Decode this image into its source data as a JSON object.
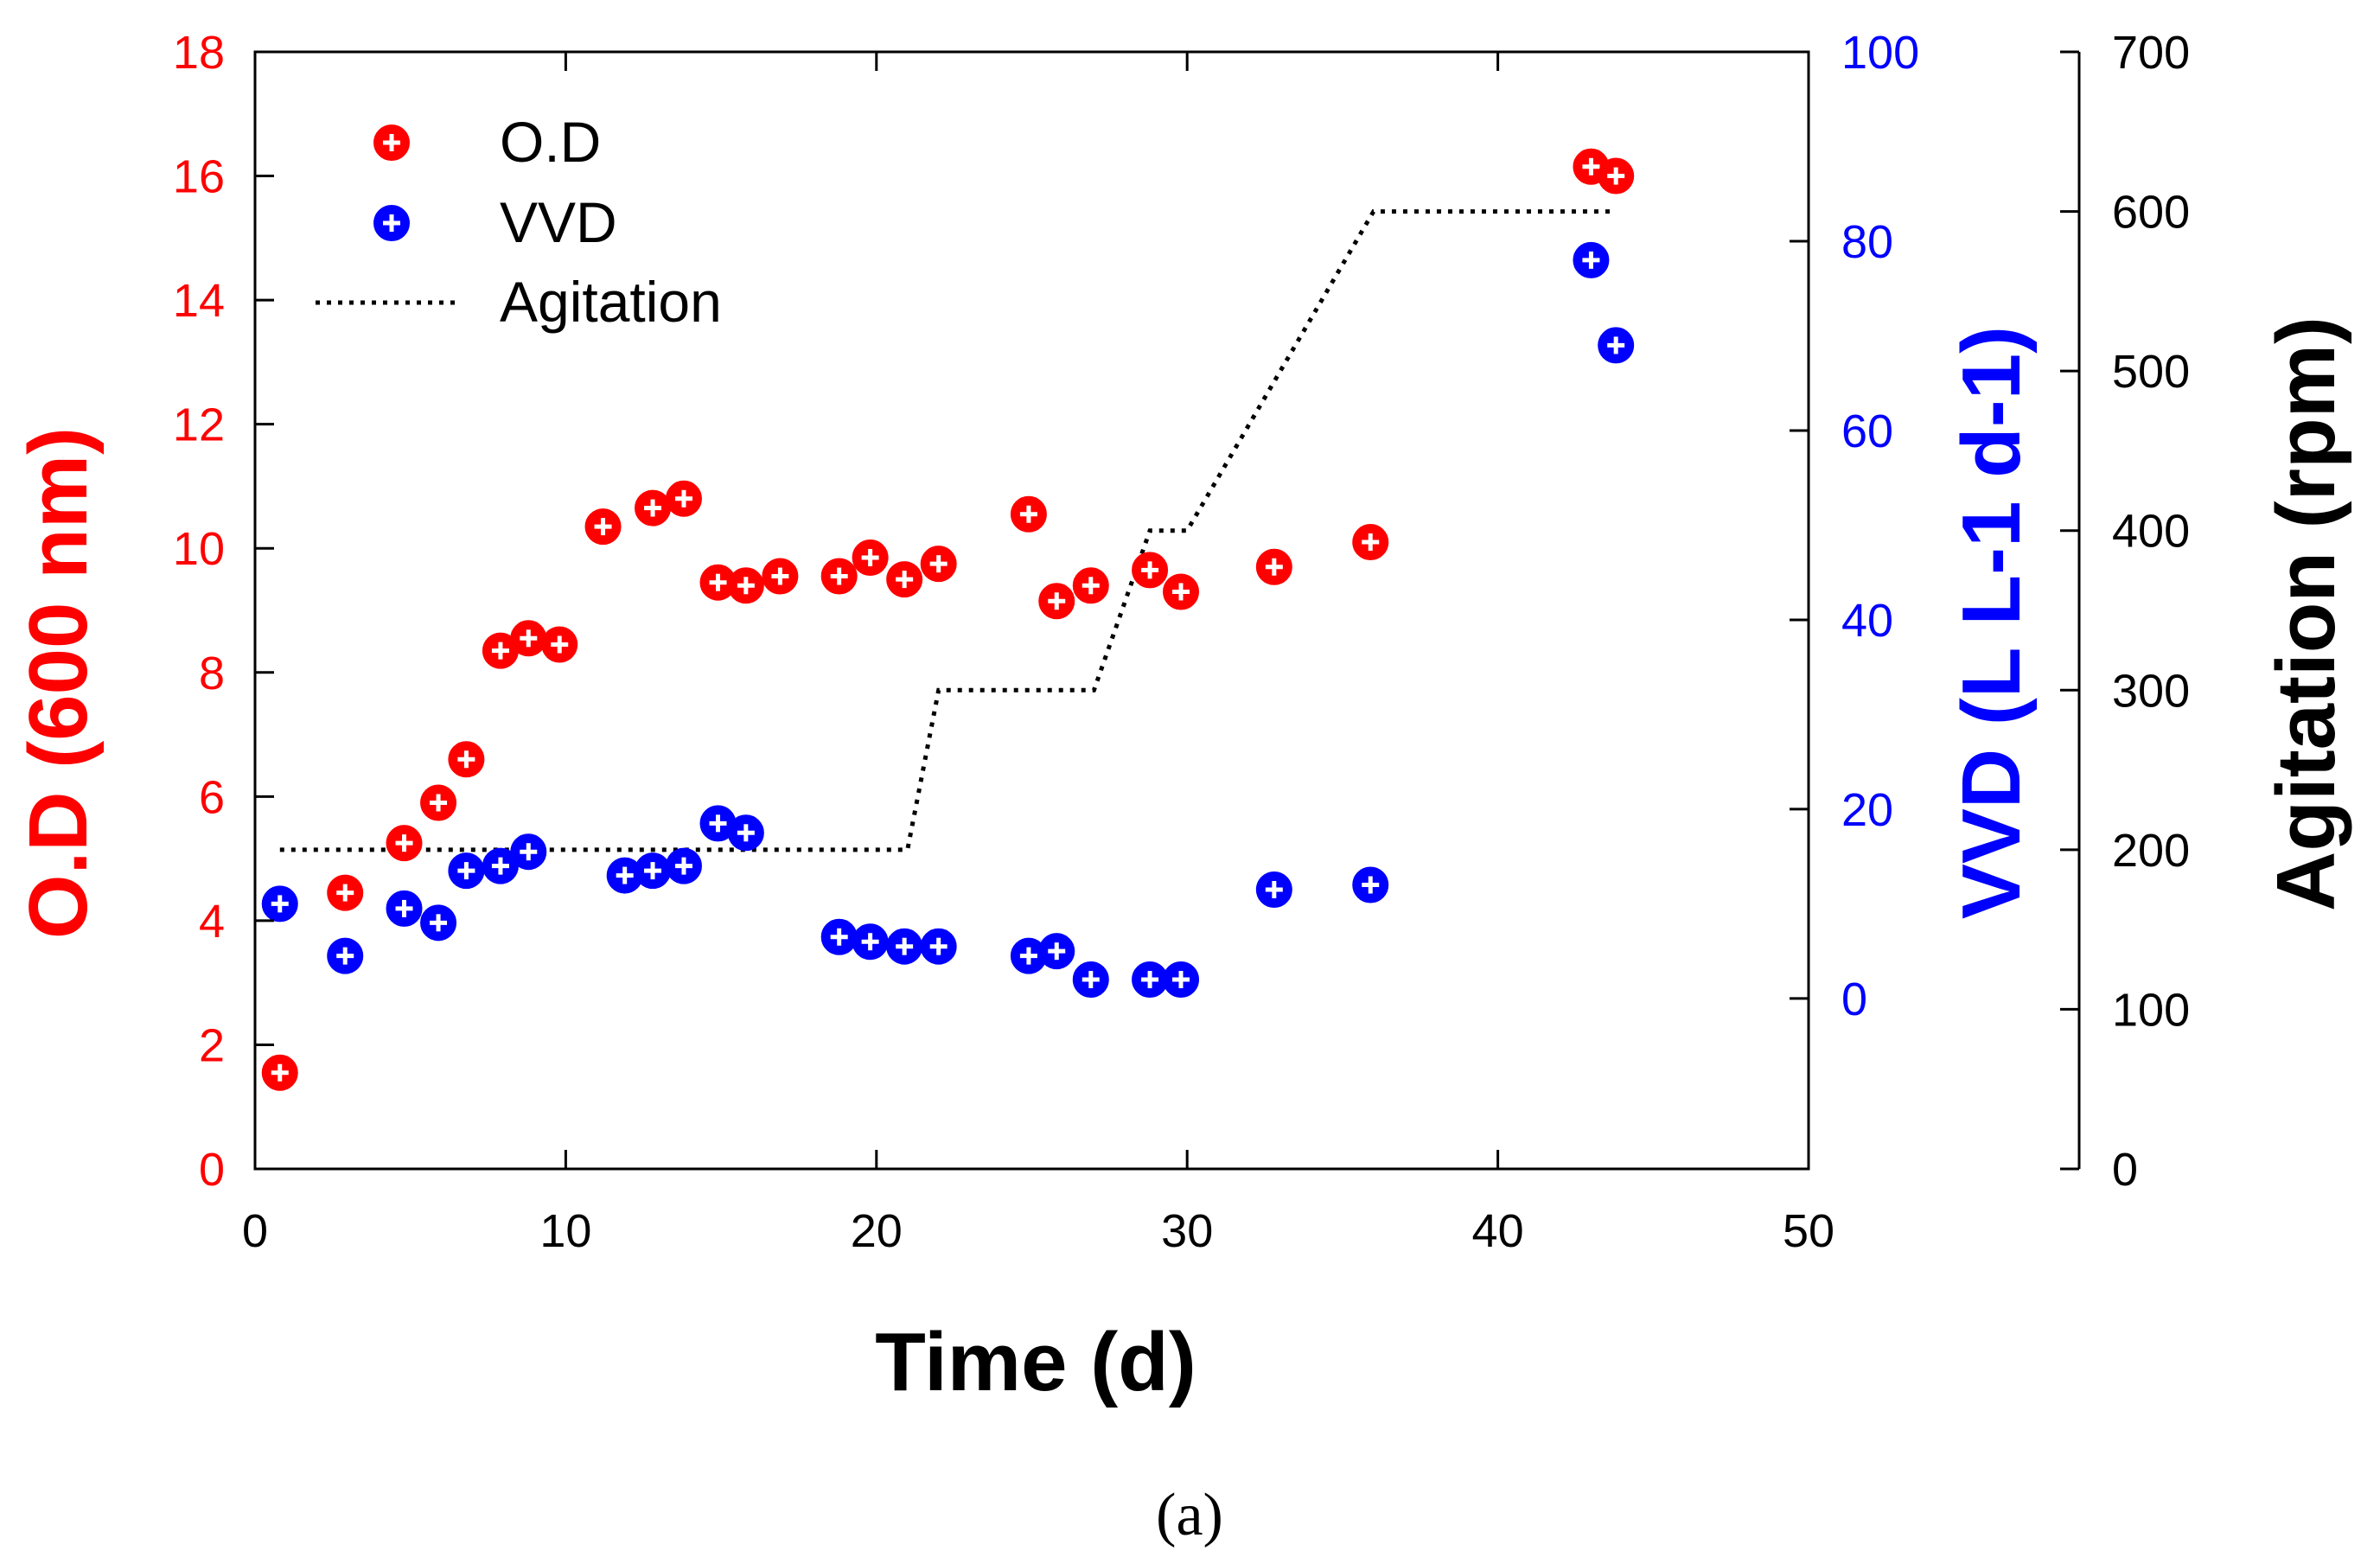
{
  "chart_data": {
    "type": "scatter",
    "x_axis": {
      "label": "Time (d)",
      "range": [
        0,
        50
      ],
      "ticks": [
        0,
        10,
        20,
        30,
        40,
        50
      ]
    },
    "y_axes": {
      "left": {
        "label": "O.D (600 nm)",
        "color": "#ff0000",
        "range": [
          0,
          18
        ],
        "ticks": [
          0,
          2,
          4,
          6,
          8,
          10,
          12,
          14,
          16,
          18
        ]
      },
      "right1": {
        "label": "VVD (L L-1 d-1)",
        "color": "#0000ff",
        "range": [
          -18,
          100
        ],
        "ticks": [
          0,
          20,
          40,
          60,
          80,
          100
        ]
      },
      "right2": {
        "label": "Agitation (rpm)",
        "color": "#000000",
        "range": [
          0,
          700
        ],
        "ticks": [
          0,
          100,
          200,
          300,
          400,
          500,
          600,
          700
        ]
      }
    },
    "series": [
      {
        "name": "O.D",
        "axis": "left",
        "kind": "scatter",
        "color": "#ff0000",
        "x": [
          0.8,
          2.9,
          4.8,
          5.9,
          6.8,
          7.9,
          8.8,
          9.8,
          11.2,
          12.8,
          13.8,
          14.9,
          15.8,
          16.9,
          18.8,
          19.8,
          20.9,
          22.0,
          24.9,
          25.8,
          26.9,
          28.8,
          29.8,
          32.8,
          35.9,
          43.0,
          43.8
        ],
        "y": [
          1.55,
          4.45,
          5.25,
          5.9,
          6.6,
          8.35,
          8.55,
          8.45,
          10.35,
          10.65,
          10.8,
          9.45,
          9.4,
          9.55,
          9.55,
          9.85,
          9.5,
          9.75,
          10.55,
          9.15,
          9.4,
          9.65,
          9.3,
          9.7,
          10.1,
          16.15,
          16.0
        ]
      },
      {
        "name": "VVD",
        "axis": "right1",
        "kind": "scatter",
        "color": "#0000ff",
        "x": [
          0.8,
          2.9,
          4.8,
          5.9,
          6.8,
          7.9,
          8.8,
          11.9,
          12.8,
          13.8,
          14.9,
          15.8,
          18.8,
          19.8,
          20.9,
          22.0,
          24.9,
          25.8,
          26.9,
          28.8,
          29.8,
          32.8,
          35.9,
          43.0,
          43.8
        ],
        "y": [
          10,
          4.5,
          9.5,
          8,
          13.5,
          14,
          15.5,
          13,
          13.5,
          14,
          18.5,
          17.5,
          6.5,
          6,
          5.5,
          5.5,
          4.5,
          5,
          2,
          2,
          2,
          11.5,
          12,
          78,
          69
        ]
      },
      {
        "name": "Agitation",
        "axis": "right2",
        "kind": "line",
        "style": "dotted",
        "color": "#000000",
        "x": [
          0.8,
          21.0,
          22.0,
          27.0,
          28.8,
          30.0,
          36.0,
          43.8
        ],
        "y": [
          200,
          200,
          300,
          300,
          400,
          400,
          600,
          600
        ]
      }
    ],
    "legend": {
      "placement": "top-left",
      "entries": [
        "O.D",
        "VVD",
        "Agitation"
      ]
    },
    "caption": "(a)"
  }
}
